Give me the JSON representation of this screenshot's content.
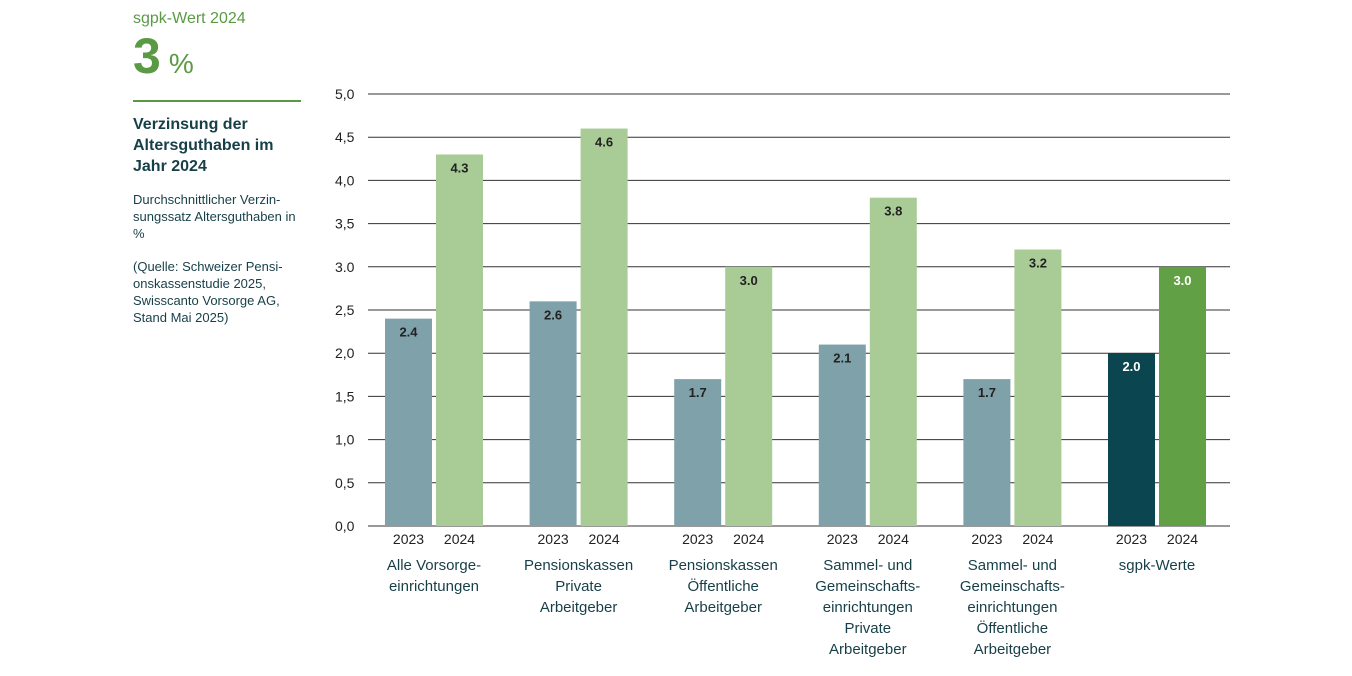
{
  "sidebar": {
    "eyebrow": "sgpk-Wert 2024",
    "big_value": "3",
    "big_unit": "%",
    "subtitle": "Verzinsung der Altersguthaben im Jahr 2024",
    "description": "Durchschnittlicher Verzin-sungssatz Altersguthaben in %",
    "source": "(Quelle: Schweizer Pensi-onskassenstudie 2025, Swisscanto Vorsorge AG, Stand Mai 2025)"
  },
  "colors": {
    "accent": "#5a9a45",
    "bar_2023": "#7fa1a9",
    "bar_2024": "#a9cc97",
    "bar_sgpk_2023": "#0b4650",
    "bar_sgpk_2024": "#62a046",
    "grid": "#333333"
  },
  "chart_data": {
    "type": "bar",
    "y_tick_labels": [
      "0,0",
      "0,5",
      "1,0",
      "1,5",
      "2,0",
      "2,5",
      "3.0",
      "3,5",
      "4,0",
      "4,5",
      "5,0"
    ],
    "ylim": [
      0,
      5
    ],
    "grid": true,
    "categories": [
      [
        "Alle Vorsorge-",
        "einrichtungen"
      ],
      [
        "Pensionskassen",
        "Private",
        "Arbeitgeber"
      ],
      [
        "Pensionskassen",
        "Öffentliche",
        "Arbeitgeber"
      ],
      [
        "Sammel- und",
        "Gemeinschafts-",
        "einrichtungen",
        "Private",
        "Arbeitgeber"
      ],
      [
        "Sammel- und",
        "Gemeinschafts-",
        "einrichtungen",
        "Öffentliche",
        "Arbeitgeber"
      ],
      [
        "sgpk-Werte"
      ]
    ],
    "series": [
      {
        "name": "2023",
        "values": [
          2.4,
          2.6,
          1.7,
          2.1,
          1.7,
          2.0
        ],
        "labels": [
          "2.4",
          "2.6",
          "1.7",
          "2.1",
          "1.7",
          "2.0"
        ]
      },
      {
        "name": "2024",
        "values": [
          4.3,
          4.6,
          3.0,
          3.8,
          3.2,
          3.0
        ],
        "labels": [
          "4.3",
          "4.6",
          "3.0",
          "3.8",
          "3.2",
          "3.0"
        ]
      }
    ]
  }
}
